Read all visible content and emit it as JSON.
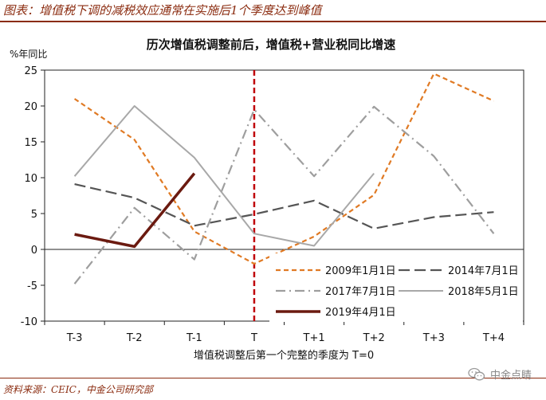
{
  "header": {
    "title": "图表：增值税下调的减税效应通常在实施后1个季度达到峰值"
  },
  "footer": {
    "source": "资料来源：CEIC，中金公司研究部"
  },
  "watermark": {
    "text": "中金点睛",
    "icon": "wechat-icon"
  },
  "chart_data": {
    "type": "line",
    "title": "历次增值税调整前后，增值税+营业税同比增速",
    "ylabel": "%年同比",
    "xlabel": "增值税调整后第一个完整的季度为 T=0",
    "categories": [
      "T-3",
      "T-2",
      "T-1",
      "T",
      "T+1",
      "T+2",
      "T+3",
      "T+4"
    ],
    "ylim": [
      -10,
      25
    ],
    "yticks": [
      "25",
      "20",
      "15",
      "10",
      "5",
      "0",
      "-5",
      "-10"
    ],
    "reference_line": {
      "x": "T",
      "color": "#C0000A",
      "style": "dashed"
    },
    "legend_position": "bottom-right",
    "series": [
      {
        "name": "2009年1月1日",
        "color": "#E07A24",
        "dash": "short-dash",
        "values": [
          21,
          15.3,
          2.5,
          -2,
          1.8,
          7.6,
          24.5,
          20.7
        ]
      },
      {
        "name": "2014年7月1日",
        "color": "#555555",
        "dash": "long-dash",
        "values": [
          9.1,
          7.2,
          3.3,
          4.9,
          6.8,
          2.9,
          4.5,
          5.2
        ]
      },
      {
        "name": "2017年7月1日",
        "color": "#9E9E9E",
        "dash": "dash-dot",
        "values": [
          -4.8,
          5.8,
          -1.4,
          19.5,
          10.2,
          19.9,
          13,
          2.2
        ]
      },
      {
        "name": "2018年5月1日",
        "color": "#A8A8A8",
        "dash": "solid",
        "values": [
          10.2,
          20,
          12.8,
          2.2,
          0.5,
          10.6,
          null,
          null
        ]
      },
      {
        "name": "2019年4月1日",
        "color": "#6B1A10",
        "dash": "solid-thick",
        "values": [
          2.1,
          0.4,
          10.6,
          null,
          null,
          null,
          null,
          null
        ]
      }
    ]
  }
}
